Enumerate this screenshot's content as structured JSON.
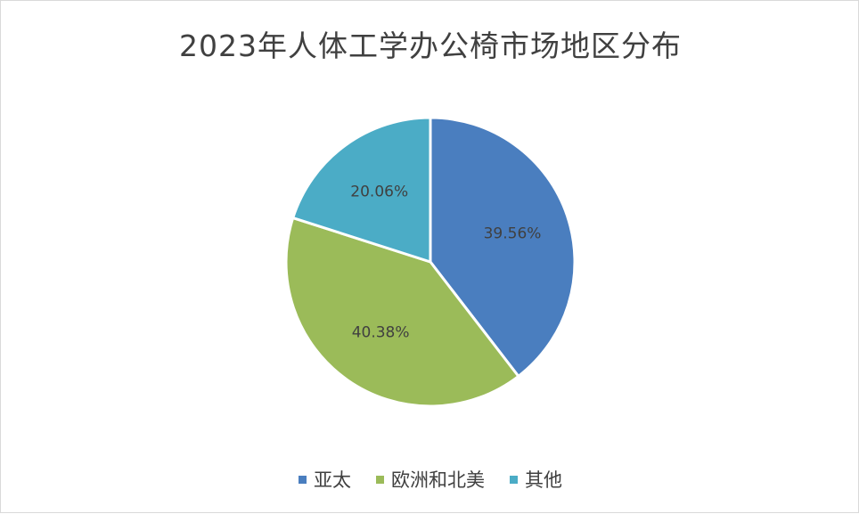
{
  "chart_data": {
    "type": "pie",
    "title": "2023年人体工学办公椅市场地区分布",
    "categories": [
      "亚太",
      "欧洲和北美",
      "其他"
    ],
    "values": [
      39.56,
      40.38,
      20.06
    ],
    "data_labels": [
      "39.56%",
      "40.38%",
      "20.06%"
    ],
    "colors": [
      "#4a7ebf",
      "#9bbb59",
      "#4bacc6"
    ],
    "start_angle_deg": 0,
    "direction": "clockwise",
    "legend": "bottom"
  }
}
